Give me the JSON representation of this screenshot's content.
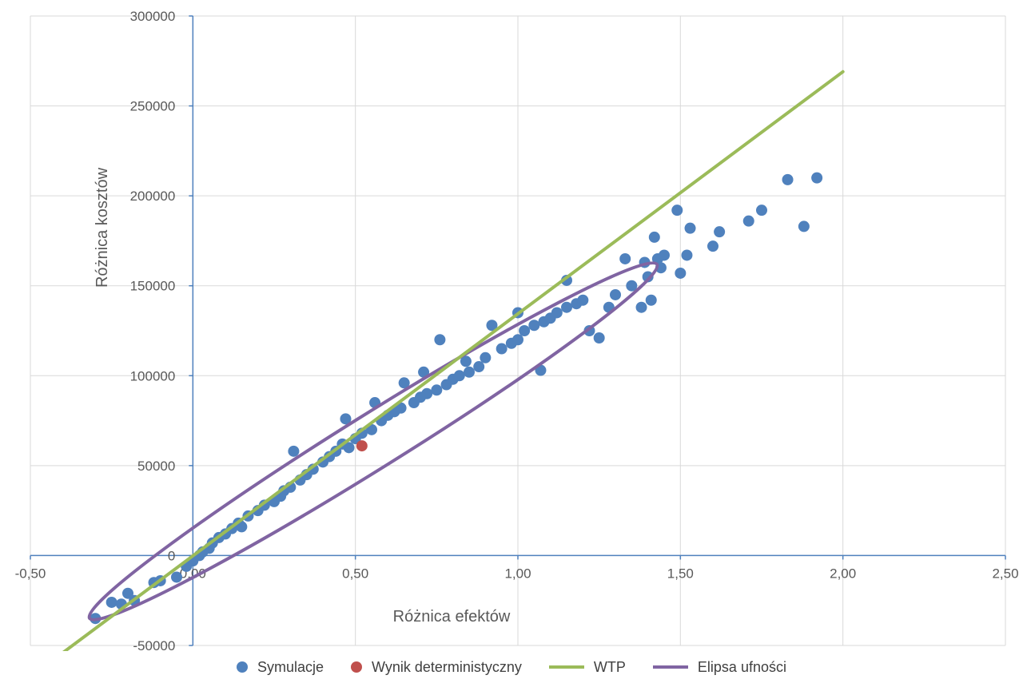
{
  "chart_data": {
    "type": "scatter",
    "title": "",
    "xlabel": "Różnica efektów",
    "ylabel": "Różnica kosztów",
    "xlim": [
      -0.5,
      2.5
    ],
    "ylim": [
      -50000,
      300000
    ],
    "xticks": [
      "-0,50",
      "0,00",
      "0,50",
      "1,00",
      "1,50",
      "2,00",
      "2,50"
    ],
    "yticks": [
      "-50000",
      "0",
      "50000",
      "100000",
      "150000",
      "200000",
      "250000",
      "300000"
    ],
    "grid": true,
    "legend_position": "bottom",
    "series": [
      {
        "name": "Symulacje",
        "type": "scatter",
        "color": "#4F81BD",
        "points": [
          [
            -0.3,
            -35000
          ],
          [
            -0.25,
            -26000
          ],
          [
            -0.22,
            -27000
          ],
          [
            -0.18,
            -25000
          ],
          [
            -0.2,
            -21000
          ],
          [
            -0.12,
            -15000
          ],
          [
            -0.1,
            -14000
          ],
          [
            -0.05,
            -12000
          ],
          [
            -0.02,
            -6000
          ],
          [
            0.0,
            -3000
          ],
          [
            0.02,
            0
          ],
          [
            0.03,
            2000
          ],
          [
            0.05,
            4000
          ],
          [
            0.06,
            7000
          ],
          [
            0.08,
            10000
          ],
          [
            0.1,
            12000
          ],
          [
            0.12,
            15000
          ],
          [
            0.14,
            18000
          ],
          [
            0.15,
            16000
          ],
          [
            0.17,
            22000
          ],
          [
            0.2,
            25000
          ],
          [
            0.22,
            28000
          ],
          [
            0.25,
            30000
          ],
          [
            0.27,
            33000
          ],
          [
            0.28,
            36000
          ],
          [
            0.3,
            38000
          ],
          [
            0.31,
            58000
          ],
          [
            0.33,
            42000
          ],
          [
            0.35,
            45000
          ],
          [
            0.37,
            48000
          ],
          [
            0.4,
            52000
          ],
          [
            0.42,
            55000
          ],
          [
            0.44,
            58000
          ],
          [
            0.46,
            62000
          ],
          [
            0.47,
            76000
          ],
          [
            0.48,
            60000
          ],
          [
            0.5,
            65000
          ],
          [
            0.52,
            68000
          ],
          [
            0.55,
            70000
          ],
          [
            0.56,
            85000
          ],
          [
            0.58,
            75000
          ],
          [
            0.6,
            78000
          ],
          [
            0.62,
            80000
          ],
          [
            0.64,
            82000
          ],
          [
            0.65,
            96000
          ],
          [
            0.68,
            85000
          ],
          [
            0.7,
            88000
          ],
          [
            0.71,
            102000
          ],
          [
            0.72,
            90000
          ],
          [
            0.75,
            92000
          ],
          [
            0.76,
            120000
          ],
          [
            0.78,
            95000
          ],
          [
            0.8,
            98000
          ],
          [
            0.82,
            100000
          ],
          [
            0.84,
            108000
          ],
          [
            0.85,
            102000
          ],
          [
            0.88,
            105000
          ],
          [
            0.9,
            110000
          ],
          [
            0.92,
            128000
          ],
          [
            0.95,
            115000
          ],
          [
            0.98,
            118000
          ],
          [
            1.0,
            120000
          ],
          [
            1.0,
            135000
          ],
          [
            1.02,
            125000
          ],
          [
            1.05,
            128000
          ],
          [
            1.07,
            103000
          ],
          [
            1.08,
            130000
          ],
          [
            1.1,
            132000
          ],
          [
            1.12,
            135000
          ],
          [
            1.15,
            138000
          ],
          [
            1.15,
            153000
          ],
          [
            1.18,
            140000
          ],
          [
            1.2,
            142000
          ],
          [
            1.22,
            125000
          ],
          [
            1.25,
            121000
          ],
          [
            1.28,
            138000
          ],
          [
            1.3,
            145000
          ],
          [
            1.33,
            165000
          ],
          [
            1.35,
            150000
          ],
          [
            1.38,
            138000
          ],
          [
            1.39,
            163000
          ],
          [
            1.4,
            155000
          ],
          [
            1.41,
            142000
          ],
          [
            1.42,
            177000
          ],
          [
            1.43,
            165000
          ],
          [
            1.44,
            160000
          ],
          [
            1.45,
            167000
          ],
          [
            1.49,
            192000
          ],
          [
            1.5,
            157000
          ],
          [
            1.52,
            167000
          ],
          [
            1.53,
            182000
          ],
          [
            1.6,
            172000
          ],
          [
            1.62,
            180000
          ],
          [
            1.71,
            186000
          ],
          [
            1.75,
            192000
          ],
          [
            1.83,
            209000
          ],
          [
            1.88,
            183000
          ],
          [
            1.92,
            210000
          ]
        ]
      },
      {
        "name": "Wynik deterministyczny",
        "type": "scatter",
        "color": "#C0504D",
        "points": [
          [
            0.52,
            61000
          ]
        ]
      },
      {
        "name": "WTP",
        "type": "line",
        "color": "#9BBB59",
        "points": [
          [
            -0.4,
            -54000
          ],
          [
            2.0,
            269000
          ]
        ]
      },
      {
        "name": "Elipsa ufności",
        "type": "ellipse",
        "color": "#8064A2",
        "center": [
          0.555,
          63500
        ],
        "angle_deg": 90
      }
    ]
  }
}
